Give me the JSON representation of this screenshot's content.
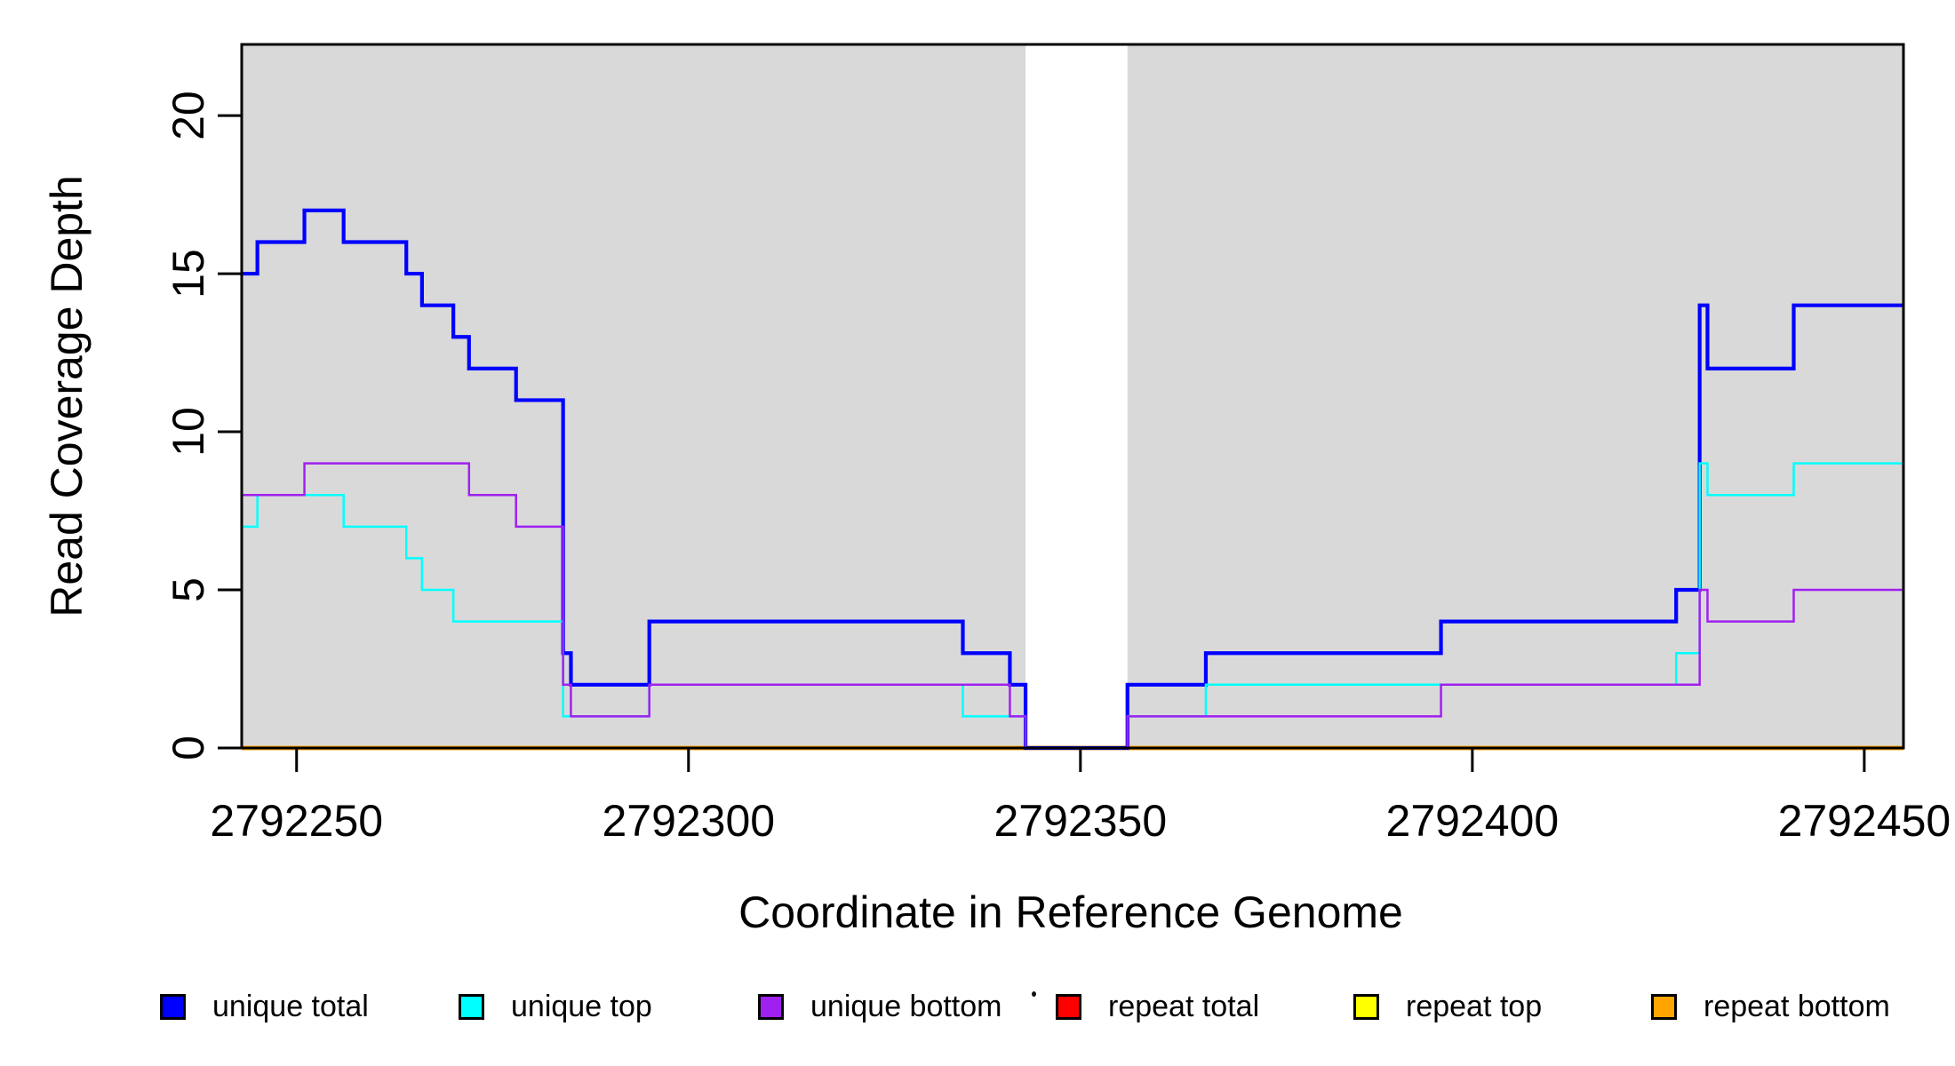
{
  "chart_data": {
    "type": "line",
    "subtype": "step",
    "title": "",
    "xlabel": "Coordinate in Reference Genome",
    "ylabel": "Read Coverage Depth",
    "xlim": [
      2792243,
      2792455
    ],
    "ylim": [
      0,
      22.25
    ],
    "x_ticks": [
      2792250,
      2792300,
      2792350,
      2792400,
      2792450
    ],
    "y_ticks": [
      0,
      5,
      10,
      15,
      20
    ],
    "grid": false,
    "legend_position": "bottom",
    "plot_background": "#ffffff",
    "shaded_region_color": "#d9d9d9",
    "shaded_regions": [
      {
        "x0": 2792243,
        "x1": 2792343
      },
      {
        "x0": 2792356,
        "x1": 2792455
      }
    ],
    "gap_region": {
      "x0": 2792343,
      "x1": 2792356
    },
    "axis_color": "#000000",
    "draw_order": [
      "repeat total",
      "repeat top",
      "repeat bottom",
      "unique total",
      "unique top",
      "unique bottom"
    ],
    "series": [
      {
        "name": "unique total",
        "color": "#0000ff",
        "line_width": 4.2,
        "points": [
          [
            2792243,
            15
          ],
          [
            2792245,
            16
          ],
          [
            2792251,
            17
          ],
          [
            2792256,
            16
          ],
          [
            2792264,
            15
          ],
          [
            2792266,
            14
          ],
          [
            2792270,
            13
          ],
          [
            2792272,
            12
          ],
          [
            2792278,
            11
          ],
          [
            2792284,
            3
          ],
          [
            2792285,
            2
          ],
          [
            2792295,
            4
          ],
          [
            2792335,
            3
          ],
          [
            2792341,
            2
          ],
          [
            2792343,
            0
          ],
          [
            2792356,
            2
          ],
          [
            2792366,
            3
          ],
          [
            2792396,
            4
          ],
          [
            2792426,
            5
          ],
          [
            2792429,
            14
          ],
          [
            2792430,
            12
          ],
          [
            2792441,
            14
          ]
        ],
        "x_end": 2792455
      },
      {
        "name": "unique top",
        "color": "#00ffff",
        "line_width": 2.5,
        "points": [
          [
            2792243,
            7
          ],
          [
            2792245,
            8
          ],
          [
            2792256,
            7
          ],
          [
            2792264,
            6
          ],
          [
            2792266,
            5
          ],
          [
            2792270,
            4
          ],
          [
            2792284,
            1
          ],
          [
            2792295,
            2
          ],
          [
            2792335,
            1
          ],
          [
            2792343,
            0
          ],
          [
            2792356,
            1
          ],
          [
            2792366,
            2
          ],
          [
            2792426,
            3
          ],
          [
            2792429,
            9
          ],
          [
            2792430,
            8
          ],
          [
            2792441,
            9
          ]
        ],
        "x_end": 2792455
      },
      {
        "name": "unique bottom",
        "color": "#a020f0",
        "line_width": 2.5,
        "points": [
          [
            2792243,
            8
          ],
          [
            2792251,
            9
          ],
          [
            2792272,
            8
          ],
          [
            2792278,
            7
          ],
          [
            2792284,
            2
          ],
          [
            2792285,
            1
          ],
          [
            2792295,
            2
          ],
          [
            2792341,
            1
          ],
          [
            2792343,
            0
          ],
          [
            2792356,
            1
          ],
          [
            2792396,
            2
          ],
          [
            2792429,
            5
          ],
          [
            2792430,
            4
          ],
          [
            2792441,
            5
          ]
        ],
        "x_end": 2792455
      },
      {
        "name": "repeat total",
        "color": "#ff0000",
        "line_width": 4,
        "points": [
          [
            2792243,
            0
          ]
        ],
        "x_end": 2792455
      },
      {
        "name": "repeat top",
        "color": "#ffff00",
        "line_width": 4,
        "points": [
          [
            2792243,
            0
          ]
        ],
        "x_end": 2792455
      },
      {
        "name": "repeat bottom",
        "color": "#ffa500",
        "line_width": 5,
        "points": [
          [
            2792243,
            0
          ]
        ],
        "x_end": 2792455
      }
    ]
  }
}
